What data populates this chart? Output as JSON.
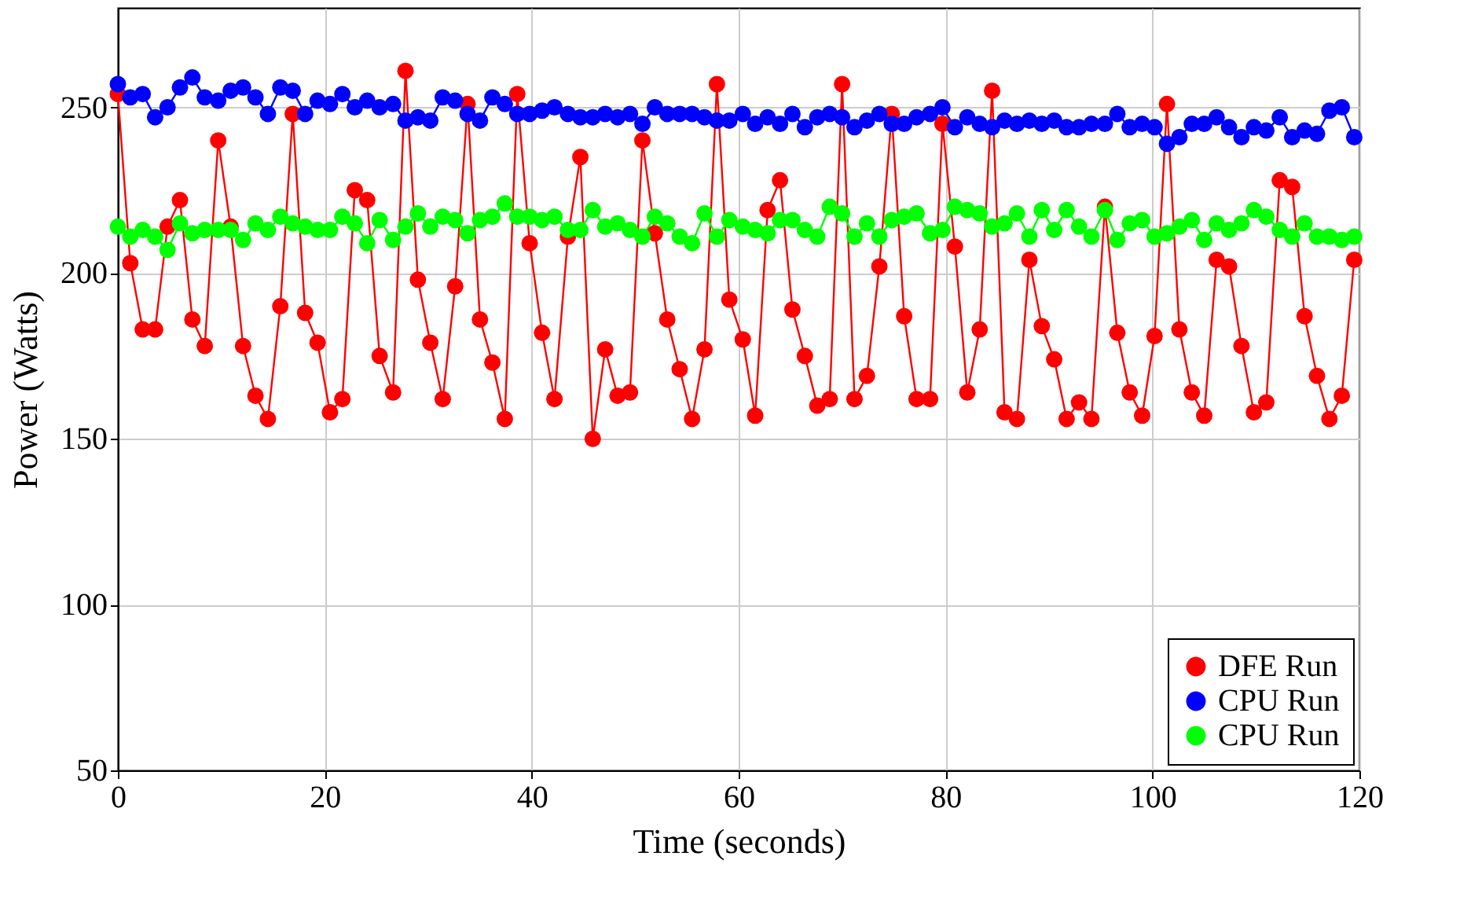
{
  "chart_data": {
    "type": "line",
    "xlabel": "Time (seconds)",
    "ylabel": "Power (Watts)",
    "x": [
      0,
      1.2,
      2.4,
      3.6,
      4.8,
      6.0,
      7.2,
      8.4,
      9.7,
      10.9,
      12.1,
      13.3,
      14.5,
      15.7,
      16.9,
      18.1,
      19.3,
      20.5,
      21.7,
      22.9,
      24.1,
      25.3,
      26.6,
      27.8,
      29.0,
      30.2,
      31.4,
      32.6,
      33.8,
      35.0,
      36.2,
      37.4,
      38.6,
      39.8,
      41.0,
      42.2,
      43.5,
      44.7,
      45.9,
      47.1,
      48.3,
      49.5,
      50.7,
      51.9,
      53.1,
      54.3,
      55.5,
      56.7,
      57.9,
      59.1,
      60.4,
      61.6,
      62.8,
      64.0,
      65.2,
      66.4,
      67.6,
      68.8,
      70.0,
      71.2,
      72.4,
      73.6,
      74.8,
      76.0,
      77.2,
      78.5,
      79.7,
      80.9,
      82.1,
      83.3,
      84.5,
      85.7,
      86.9,
      88.1,
      89.3,
      90.5,
      91.7,
      92.9,
      94.1,
      95.4,
      96.6,
      97.8,
      99.0,
      100.2,
      101.4,
      102.6,
      103.8,
      105.0,
      106.2,
      107.4,
      108.6,
      109.8,
      111.0,
      112.3,
      113.5,
      114.7,
      115.9,
      117.1,
      118.3,
      119.5
    ],
    "series": [
      {
        "name": "DFE Run",
        "color": "#ff0000",
        "values": [
          254,
          203,
          183,
          183,
          214,
          222,
          186,
          178,
          240,
          214,
          178,
          163,
          156,
          190,
          248,
          188,
          179,
          158,
          162,
          225,
          222,
          175,
          164,
          261,
          198,
          179,
          162,
          196,
          251,
          186,
          173,
          156,
          254,
          209,
          182,
          162,
          211,
          235,
          150,
          177,
          163,
          164,
          240,
          212,
          186,
          171,
          156,
          177,
          257,
          192,
          180,
          157,
          219,
          228,
          189,
          175,
          160,
          162,
          257,
          162,
          169,
          202,
          248,
          187,
          162,
          162,
          245,
          208,
          164,
          183,
          255,
          158,
          156,
          204,
          184,
          174,
          156,
          161,
          156,
          220,
          182,
          164,
          157,
          181,
          251,
          183,
          164,
          157,
          204,
          202,
          178,
          158,
          161,
          228,
          226,
          187,
          169,
          156,
          163,
          204
        ]
      },
      {
        "name": "CPU Run",
        "color": "#0000ff",
        "values": [
          257,
          253,
          254,
          247,
          250,
          256,
          259,
          253,
          252,
          255,
          256,
          253,
          248,
          256,
          255,
          248,
          252,
          251,
          254,
          250,
          252,
          250,
          251,
          246,
          247,
          246,
          253,
          252,
          248,
          246,
          253,
          251,
          248,
          248,
          249,
          250,
          248,
          247,
          247,
          248,
          247,
          248,
          245,
          250,
          248,
          248,
          248,
          247,
          246,
          246,
          248,
          245,
          247,
          245,
          248,
          244,
          247,
          248,
          247,
          244,
          246,
          248,
          245,
          245,
          247,
          248,
          250,
          244,
          247,
          245,
          244,
          246,
          245,
          246,
          245,
          246,
          244,
          244,
          245,
          245,
          248,
          244,
          245,
          244,
          239,
          241,
          245,
          245,
          247,
          244,
          241,
          244,
          243,
          247,
          241,
          243,
          242,
          249,
          250,
          241
        ]
      },
      {
        "name": "CPU Run",
        "color": "#00ff00",
        "values": [
          214,
          211,
          213,
          211,
          207,
          215,
          212,
          213,
          213,
          213,
          210,
          215,
          213,
          217,
          215,
          214,
          213,
          213,
          217,
          215,
          209,
          216,
          210,
          214,
          218,
          214,
          217,
          216,
          212,
          216,
          217,
          221,
          217,
          217,
          216,
          217,
          213,
          213,
          219,
          214,
          215,
          213,
          211,
          217,
          215,
          211,
          209,
          218,
          211,
          216,
          214,
          213,
          212,
          216,
          216,
          213,
          211,
          220,
          218,
          211,
          215,
          211,
          216,
          217,
          218,
          212,
          213,
          220,
          219,
          218,
          214,
          215,
          218,
          211,
          219,
          213,
          219,
          214,
          211,
          219,
          210,
          215,
          216,
          211,
          212,
          214,
          216,
          210,
          215,
          213,
          215,
          219,
          217,
          213,
          211,
          215,
          211,
          211,
          210,
          211
        ]
      }
    ],
    "xlim": [
      0,
      120
    ],
    "ylim": [
      50,
      280
    ],
    "xticks": [
      0,
      20,
      40,
      60,
      80,
      100,
      120
    ],
    "yticks": [
      50,
      100,
      150,
      200,
      250
    ],
    "grid": true,
    "legend": "bottom right",
    "marker": "circle",
    "line_style": "solid"
  }
}
